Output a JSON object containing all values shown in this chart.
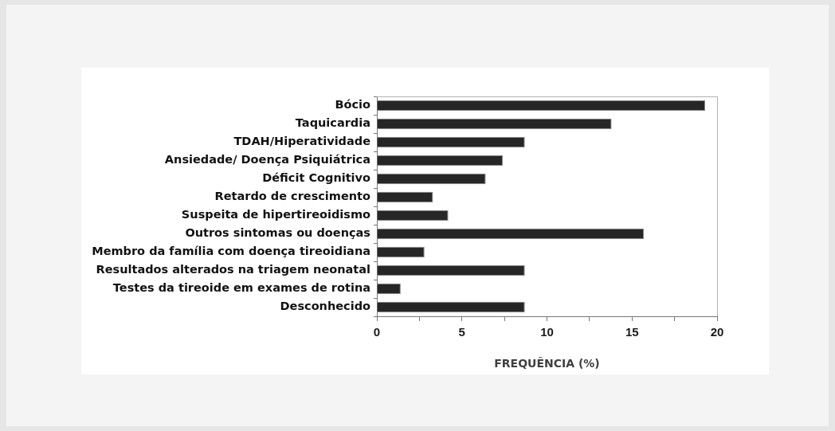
{
  "chart_data": {
    "type": "bar",
    "orientation": "horizontal",
    "xlabel": "FREQUÊNCIA (%)",
    "categories": [
      "Bócio",
      "Taquicardia",
      "TDAH/Hiperatividade",
      "Ansiedade/ Doença Psiquiátrica",
      "Déficit Cognitivo",
      "Retardo de crescimento",
      "Suspeita de hipertireoidismo",
      "Outros sintomas ou doenças",
      "Membro da família com doença tireoidiana",
      "Resultados alterados na triagem neonatal",
      "Testes da tireoide em exames de rotina",
      "Desconhecido"
    ],
    "values": [
      19.3,
      13.8,
      8.7,
      7.4,
      6.4,
      3.3,
      4.2,
      15.7,
      2.8,
      8.7,
      1.4,
      8.7
    ],
    "color": "#262626",
    "xlim": [
      0,
      20
    ],
    "xticks": [
      0,
      {
        "value": 2.5,
        "label": null
      },
      5,
      {
        "value": 7.5,
        "label": null
      },
      10,
      {
        "value": 12.5,
        "label": null
      },
      15,
      {
        "value": 17.5,
        "label": null
      },
      20
    ],
    "grid": false,
    "legend": false
  }
}
